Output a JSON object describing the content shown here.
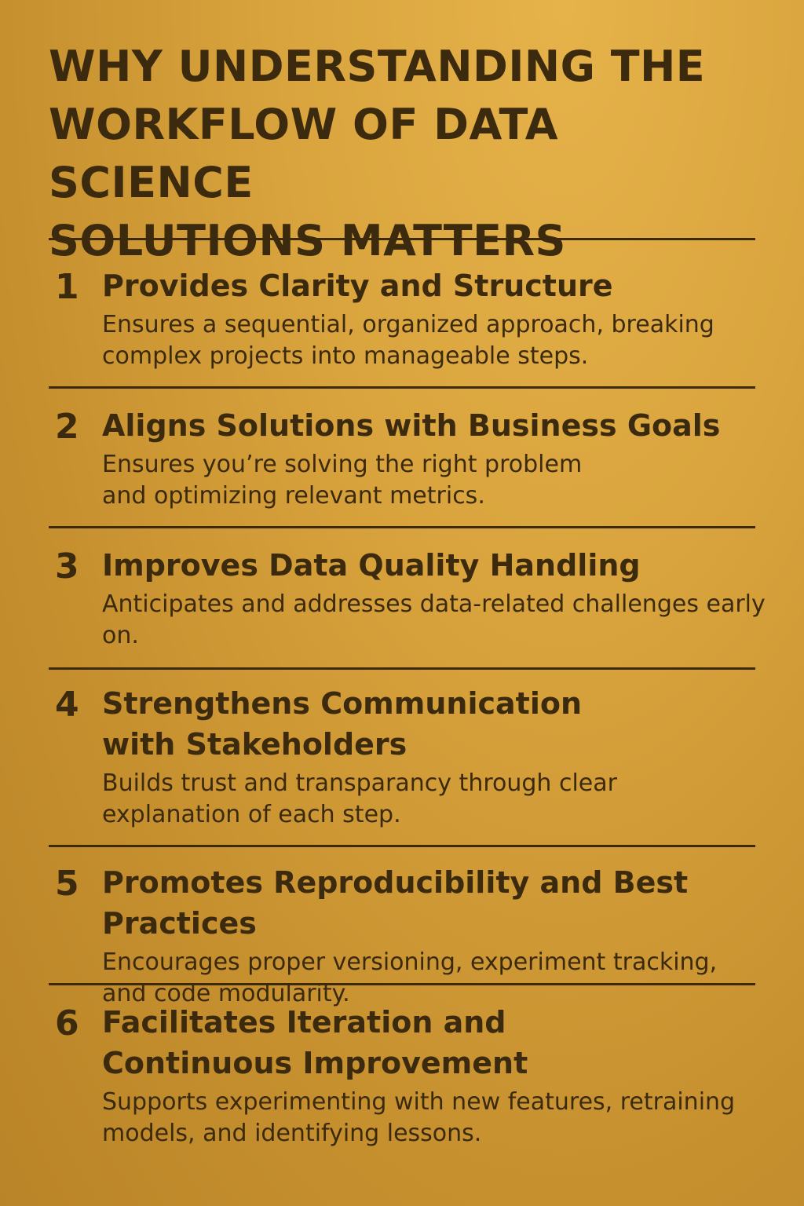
{
  "title": "WHY UNDERSTANDING THE\nWORKFLOW OF DATA SCIENCE\nSOLUTIONS MATTERS",
  "items": [
    {
      "number": "1",
      "title": "Provides Clarity and Structure",
      "description": "Ensures a sequential, organized approach, breaking complex projects into manageable steps."
    },
    {
      "number": "2",
      "title": "Aligns Solutions with Business Goals",
      "description": "Ensures you’re solving the right problem and optimizing relevant metrics."
    },
    {
      "number": "3",
      "title": "Improves Data Quality Handling",
      "description": "Anticipates and addresses data-related challenges early on."
    },
    {
      "number": "4",
      "title": "Strengthens Communication with Stakeholders",
      "description": "Builds trust and transparancy through clear explanation of each step."
    },
    {
      "number": "5",
      "title": "Promotes Reproducibility and Best Practices",
      "description": "Encourages proper versioning, experiment tracking, and code modularity."
    },
    {
      "number": "6",
      "title": "Facilitates Iteration and Continuous Improvement",
      "description": "Supports experimenting with new features, retraining models, and identifying lessons."
    }
  ],
  "colors": {
    "text": "#3b2a0e",
    "background": "#d9a43d"
  }
}
